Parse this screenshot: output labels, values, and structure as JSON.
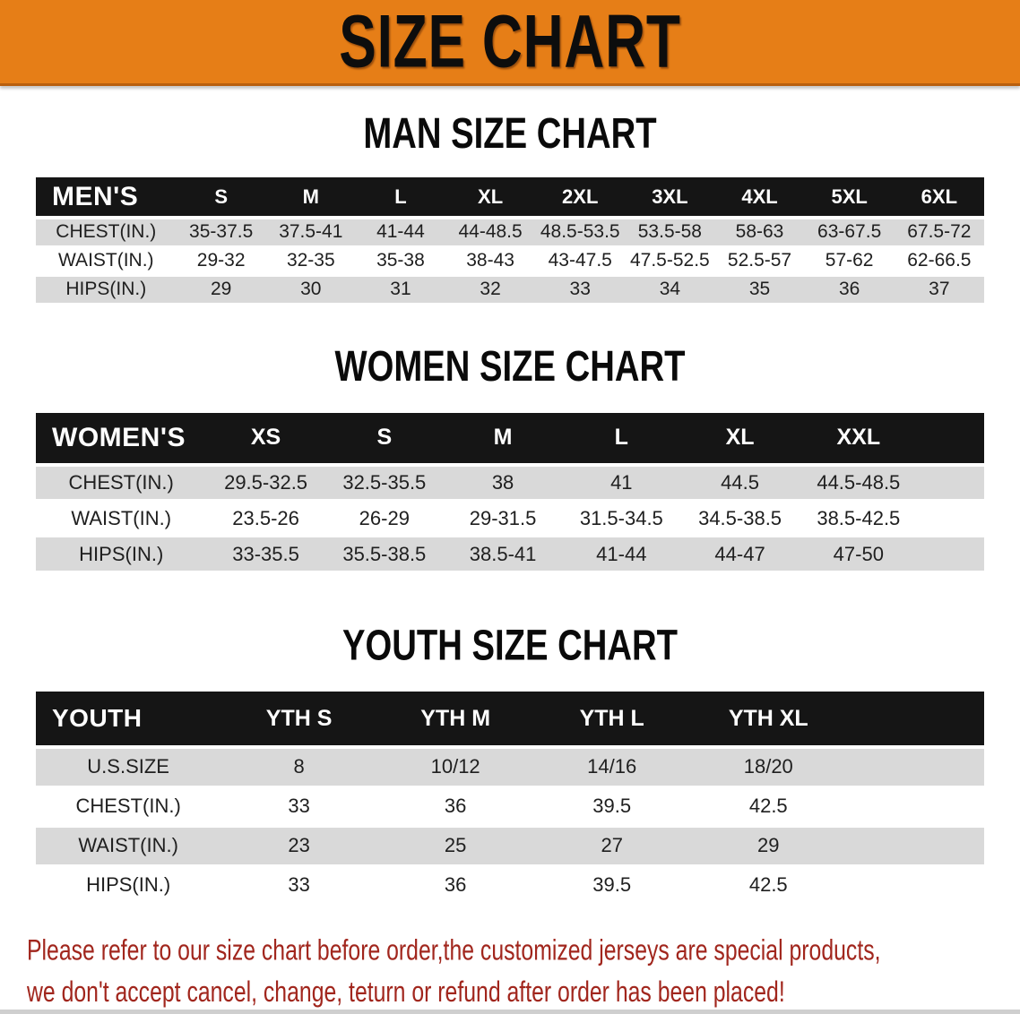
{
  "banner": {
    "title": "SIZE CHART"
  },
  "colors": {
    "banner_bg": "#E67E17",
    "header_bar_bg": "#151515",
    "row_shaded": "#D9D9D9",
    "disclaimer_red": "#A1261D"
  },
  "chart_data": [
    {
      "type": "table",
      "title": "MAN SIZE CHART",
      "corner_label": "MEN'S",
      "columns": [
        "S",
        "M",
        "L",
        "XL",
        "2XL",
        "3XL",
        "4XL",
        "5XL",
        "6XL"
      ],
      "rows": [
        {
          "label": "CHEST(IN.)",
          "values": [
            "35-37.5",
            "37.5-41",
            "41-44",
            "44-48.5",
            "48.5-53.5",
            "53.5-58",
            "58-63",
            "63-67.5",
            "67.5-72"
          ]
        },
        {
          "label": "WAIST(IN.)",
          "values": [
            "29-32",
            "32-35",
            "35-38",
            "38-43",
            "43-47.5",
            "47.5-52.5",
            "52.5-57",
            "57-62",
            "62-66.5"
          ]
        },
        {
          "label": "HIPS(IN.)",
          "values": [
            "29",
            "30",
            "31",
            "32",
            "33",
            "34",
            "35",
            "36",
            "37"
          ]
        }
      ],
      "layout": {
        "shaded_rows": "alternating starting with first",
        "header_text_color": "#FFFFFF"
      }
    },
    {
      "type": "table",
      "title": "WOMEN SIZE CHART",
      "corner_label": "WOMEN'S",
      "columns": [
        "XS",
        "S",
        "M",
        "L",
        "XL",
        "XXL"
      ],
      "rows": [
        {
          "label": "CHEST(IN.)",
          "values": [
            "29.5-32.5",
            "32.5-35.5",
            "38",
            "41",
            "44.5",
            "44.5-48.5"
          ]
        },
        {
          "label": "WAIST(IN.)",
          "values": [
            "23.5-26",
            "26-29",
            "29-31.5",
            "31.5-34.5",
            "34.5-38.5",
            "38.5-42.5"
          ]
        },
        {
          "label": "HIPS(IN.)",
          "values": [
            "33-35.5",
            "35.5-38.5",
            "38.5-41",
            "41-44",
            "44-47",
            "47-50"
          ]
        }
      ],
      "layout": {
        "shaded_rows": "alternating starting with first",
        "header_text_color": "#FFFFFF"
      }
    },
    {
      "type": "table",
      "title": "YOUTH SIZE CHART",
      "corner_label": "YOUTH",
      "columns": [
        "YTH S",
        "YTH M",
        "YTH L",
        "YTH XL"
      ],
      "rows": [
        {
          "label": "U.S.SIZE",
          "values": [
            "8",
            "10/12",
            "14/16",
            "18/20"
          ]
        },
        {
          "label": "CHEST(IN.)",
          "values": [
            "33",
            "36",
            "39.5",
            "42.5"
          ]
        },
        {
          "label": "WAIST(IN.)",
          "values": [
            "23",
            "25",
            "27",
            "29"
          ]
        },
        {
          "label": "HIPS(IN.)",
          "values": [
            "33",
            "36",
            "39.5",
            "42.5"
          ]
        }
      ],
      "layout": {
        "shaded_rows": "alternating starting with first",
        "header_text_color": "#FFFFFF"
      }
    }
  ],
  "disclaimer": {
    "line1": "Please refer to our size chart before order,the customized jerseys are special products,",
    "line2": "we don't accept cancel, change, teturn or refund after order has been placed!"
  }
}
